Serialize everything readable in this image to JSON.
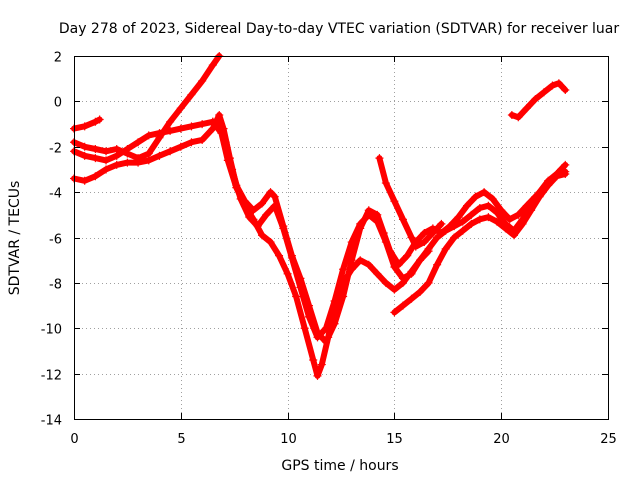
{
  "chart_data": {
    "type": "line",
    "title": "Day 278 of 2023, Sidereal Day-to-day VTEC variation (SDTVAR) for receiver luar",
    "xlabel": "GPS time / hours",
    "ylabel": "SDTVAR / TECUs",
    "xlim": [
      0,
      25
    ],
    "ylim": [
      -14,
      2
    ],
    "xticks": [
      0,
      5,
      10,
      15,
      20,
      25
    ],
    "yticks": [
      -14,
      -12,
      -10,
      -8,
      -6,
      -4,
      -2,
      0,
      2
    ],
    "grid": true,
    "marker": "plus",
    "color": "#ff0000",
    "series": [
      {
        "x": [
          0,
          0.5,
          1,
          1.5,
          2,
          2.5,
          3,
          3.5,
          4,
          4.5,
          5,
          5.5,
          6,
          6.5,
          6.8
        ],
        "y": [
          -1.8,
          -2.0,
          -2.1,
          -2.2,
          -2.1,
          -2.3,
          -2.5,
          -2.3,
          -1.6,
          -0.9,
          -0.3,
          0.3,
          0.9,
          1.6,
          2.0
        ]
      },
      {
        "x": [
          0,
          0.5,
          1,
          1.2
        ],
        "y": [
          -1.2,
          -1.1,
          -0.9,
          -0.8
        ]
      },
      {
        "x": [
          0,
          0.5,
          1,
          1.5,
          2,
          2.5,
          3,
          3.5,
          4,
          4.5,
          5,
          5.5,
          6,
          6.5,
          6.8,
          7.0,
          7.3,
          7.6,
          8.0,
          8.4,
          8.8,
          9.2,
          9.4,
          9.8,
          10.2,
          10.6,
          11.0,
          11.4,
          11.8,
          12.2,
          12.6,
          13.0,
          13.4,
          13.8,
          14.2,
          14.5,
          14.8,
          15.2,
          15.6,
          16.0,
          16.4,
          16.8,
          17.2,
          17.6,
          18.0,
          18.4,
          18.8,
          19.2,
          19.6,
          20.0,
          20.4,
          20.8,
          21.2,
          21.6,
          22.0,
          22.4,
          22.8,
          23.0
        ],
        "y": [
          -3.4,
          -3.5,
          -3.3,
          -3.0,
          -2.8,
          -2.7,
          -2.7,
          -2.6,
          -2.4,
          -2.2,
          -2.0,
          -1.8,
          -1.7,
          -1.2,
          -0.6,
          -1.2,
          -2.5,
          -3.7,
          -4.4,
          -4.8,
          -4.5,
          -4.0,
          -4.2,
          -5.5,
          -6.8,
          -7.8,
          -9.0,
          -10.2,
          -10.6,
          -9.8,
          -8.6,
          -7.0,
          -5.6,
          -4.8,
          -5.0,
          -5.8,
          -6.6,
          -7.2,
          -6.8,
          -6.2,
          -5.8,
          -5.6,
          -5.8,
          -5.5,
          -5.1,
          -4.6,
          -4.2,
          -4.0,
          -4.3,
          -4.8,
          -5.2,
          -5.0,
          -4.6,
          -4.2,
          -3.8,
          -3.4,
          -3.0,
          -2.8
        ]
      },
      {
        "x": [
          0,
          0.5,
          1,
          1.5,
          2,
          2.5,
          3,
          3.5,
          4,
          4.5,
          5,
          5.5,
          6,
          6.5,
          6.8,
          7.1,
          7.4,
          7.8,
          8.2,
          8.6,
          9.0,
          9.4,
          9.8,
          10.2,
          10.6,
          11.0,
          11.4,
          11.8,
          12.2,
          12.6,
          13.0,
          13.4,
          13.8,
          14.2,
          14.6,
          15.0,
          15.4,
          15.8,
          16.2,
          16.6,
          17.0,
          17.4,
          17.8,
          18.2,
          18.6,
          19.0,
          19.4,
          19.8,
          20.2,
          20.6,
          21.0,
          21.4,
          21.8,
          22.2,
          22.6,
          23.0
        ],
        "y": [
          -2.2,
          -2.4,
          -2.5,
          -2.6,
          -2.4,
          -2.1,
          -1.8,
          -1.5,
          -1.4,
          -1.3,
          -1.2,
          -1.1,
          -1.0,
          -0.9,
          -0.9,
          -1.8,
          -3.0,
          -4.3,
          -5.1,
          -5.5,
          -5.0,
          -4.6,
          -5.6,
          -6.9,
          -8.2,
          -9.5,
          -10.4,
          -10.0,
          -8.8,
          -7.4,
          -6.2,
          -5.4,
          -5.0,
          -5.3,
          -6.2,
          -7.3,
          -7.8,
          -7.6,
          -7.0,
          -6.5,
          -6.0,
          -5.7,
          -5.5,
          -5.3,
          -5.0,
          -4.7,
          -4.6,
          -4.9,
          -5.4,
          -5.7,
          -5.2,
          -4.6,
          -4.0,
          -3.5,
          -3.2,
          -3.1
        ]
      },
      {
        "x": [
          6.5,
          6.9,
          7.2,
          7.6,
          8.0,
          8.4,
          8.8,
          9.2,
          9.6,
          10.0,
          10.4,
          10.8,
          11.2,
          11.4,
          11.6,
          11.9,
          12.2,
          12.6,
          13.0,
          13.4,
          13.8,
          14.2,
          14.6,
          15.0,
          15.4,
          15.8,
          16.2,
          16.6
        ],
        "y": [
          -0.9,
          -1.4,
          -2.6,
          -3.8,
          -4.6,
          -5.2,
          -5.9,
          -6.2,
          -6.8,
          -7.6,
          -8.6,
          -10.0,
          -11.4,
          -12.1,
          -11.6,
          -10.4,
          -9.0,
          -8.0,
          -7.4,
          -7.0,
          -7.2,
          -7.6,
          -8.0,
          -8.3,
          -8.0,
          -7.5,
          -7.0,
          -6.6
        ]
      },
      {
        "x": [
          14.3,
          14.6,
          15.0,
          15.4,
          15.8,
          16.0,
          16.4,
          16.8,
          17.2
        ],
        "y": [
          -2.5,
          -3.6,
          -4.4,
          -5.2,
          -6.0,
          -6.4,
          -6.2,
          -5.8,
          -5.4
        ]
      },
      {
        "x": [
          15.0,
          15.4,
          15.8,
          16.2,
          16.6,
          17.0,
          17.4,
          17.8,
          18.2,
          18.6,
          19.0,
          19.4,
          19.8,
          20.2,
          20.6,
          21.0,
          21.4,
          21.8,
          22.2,
          22.6,
          23.0
        ],
        "y": [
          -9.3,
          -9.0,
          -8.7,
          -8.4,
          -8.0,
          -7.2,
          -6.5,
          -6.0,
          -5.7,
          -5.4,
          -5.2,
          -5.1,
          -5.3,
          -5.6,
          -5.9,
          -5.4,
          -4.8,
          -4.2,
          -3.7,
          -3.3,
          -3.2
        ]
      },
      {
        "x": [
          20.5,
          20.8,
          21.2,
          21.6,
          22.0,
          22.4,
          22.7,
          23.0
        ],
        "y": [
          -0.6,
          -0.7,
          -0.3,
          0.1,
          0.4,
          0.7,
          0.8,
          0.5
        ]
      }
    ]
  }
}
